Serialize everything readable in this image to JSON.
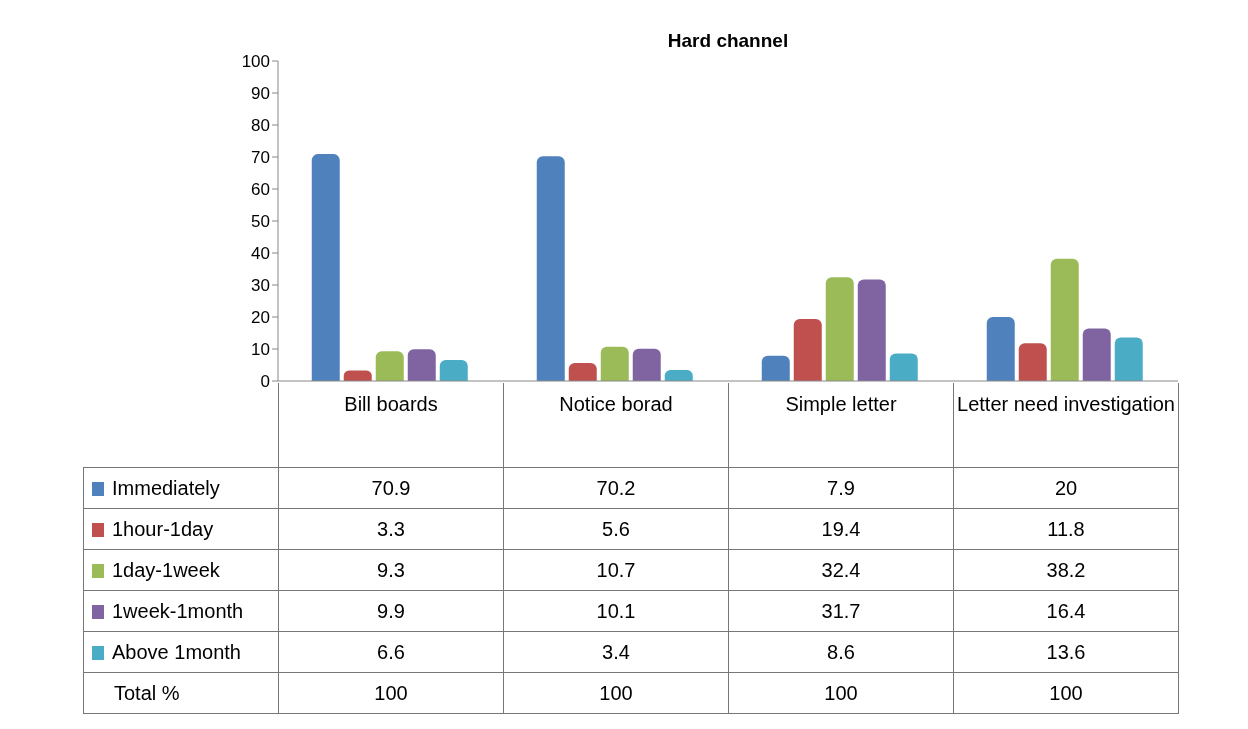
{
  "chart_data": {
    "type": "bar",
    "title": "Hard channel",
    "categories": [
      "Bill boards",
      "Notice borad",
      "Simple letter",
      "Letter need investigation"
    ],
    "series": [
      {
        "name": "Immediately",
        "color": "#4f81bd",
        "values": [
          70.9,
          70.2,
          7.9,
          20
        ]
      },
      {
        "name": "1hour-1day",
        "color": "#c0504d",
        "values": [
          3.3,
          5.6,
          19.4,
          11.8
        ]
      },
      {
        "name": "1day-1week",
        "color": "#9bbb59",
        "values": [
          9.3,
          10.7,
          32.4,
          38.2
        ]
      },
      {
        "name": "1week-1month",
        "color": "#8064a2",
        "values": [
          9.9,
          10.1,
          31.7,
          16.4
        ]
      },
      {
        "name": "Above 1month",
        "color": "#4bacc6",
        "values": [
          6.6,
          3.4,
          8.6,
          13.6
        ]
      }
    ],
    "ylim": [
      0,
      100
    ],
    "yticks": [
      0,
      10,
      20,
      30,
      40,
      50,
      60,
      70,
      80,
      90,
      100
    ],
    "legend": "bottom",
    "data_labels": true,
    "annotations": [
      "Total %",
      "100",
      "100",
      "100",
      "100"
    ]
  }
}
